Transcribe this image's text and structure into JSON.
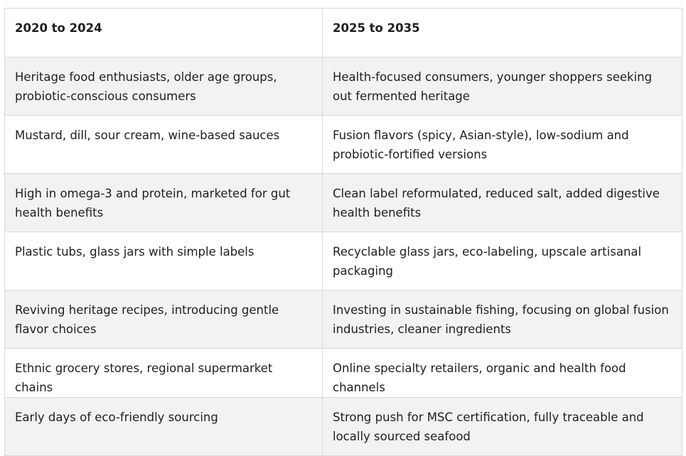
{
  "table": {
    "headers": [
      "2020 to 2024",
      "2025 to 2035"
    ],
    "rows": [
      [
        "Heritage food enthusiasts, older age groups, probiotic-conscious consumers",
        "Health-focused consumers, younger shoppers seeking out fermented heritage"
      ],
      [
        "Mustard, dill, sour cream, wine-based sauces",
        "Fusion flavors (spicy, Asian-style), low-sodium and probiotic-fortified versions"
      ],
      [
        "High in omega-3 and protein, marketed for gut health benefits",
        "Clean label reformulated, reduced salt, added digestive health benefits"
      ],
      [
        "Plastic tubs, glass jars with simple labels",
        "Recyclable glass jars, eco-labeling, upscale artisanal packaging"
      ],
      [
        "Reviving heritage recipes, introducing gentle flavor choices",
        "Investing in sustainable fishing, focusing on global fusion industries, cleaner ingredients"
      ],
      [
        "Ethnic grocery stores, regional supermarket chains",
        "Online specialty retailers, organic and health food channels"
      ],
      [
        "Early days of eco-friendly sourcing",
        "Strong push for MSC certification, fully traceable and locally sourced seafood"
      ]
    ]
  }
}
